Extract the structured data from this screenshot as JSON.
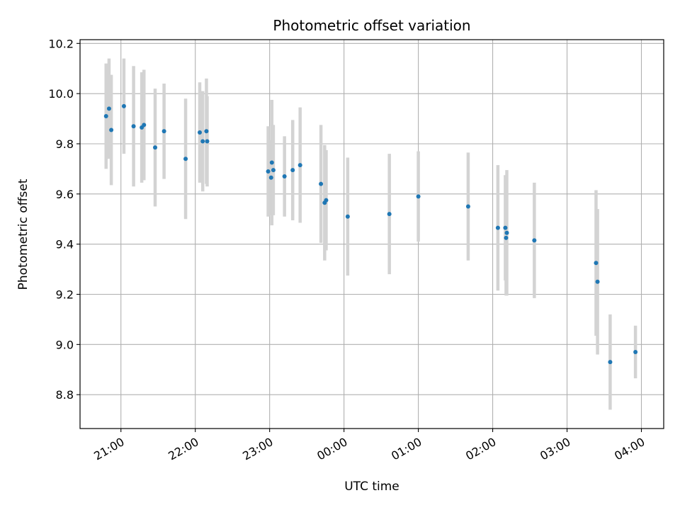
{
  "chart_data": {
    "type": "scatter",
    "title": "Photometric offset variation",
    "xlabel": "UTC time",
    "ylabel": "Photometric offset",
    "x_unit": "hours (UTC, relative to midnight)",
    "xlim": [
      -3.55,
      4.3
    ],
    "ylim": [
      8.665,
      10.215
    ],
    "grid": true,
    "x_ticks": [
      {
        "value": -3,
        "label": "21:00"
      },
      {
        "value": -2,
        "label": "22:00"
      },
      {
        "value": -1,
        "label": "23:00"
      },
      {
        "value": 0,
        "label": "00:00"
      },
      {
        "value": 1,
        "label": "01:00"
      },
      {
        "value": 2,
        "label": "02:00"
      },
      {
        "value": 3,
        "label": "03:00"
      },
      {
        "value": 4,
        "label": "04:00"
      }
    ],
    "y_ticks": [
      {
        "value": 8.8,
        "label": "8.8"
      },
      {
        "value": 9.0,
        "label": "9.0"
      },
      {
        "value": 9.2,
        "label": "9.2"
      },
      {
        "value": 9.4,
        "label": "9.4"
      },
      {
        "value": 9.6,
        "label": "9.6"
      },
      {
        "value": 9.8,
        "label": "9.8"
      },
      {
        "value": 10.0,
        "label": "10.0"
      },
      {
        "value": 10.2,
        "label": "10.2"
      }
    ],
    "marker_color": "#1f77b4",
    "errorbar_color": "#d3d3d3",
    "points": [
      {
        "x": -3.2,
        "y": 9.91,
        "err": 0.21
      },
      {
        "x": -3.16,
        "y": 9.94,
        "err": 0.2
      },
      {
        "x": -3.13,
        "y": 9.855,
        "err": 0.22
      },
      {
        "x": -2.96,
        "y": 9.95,
        "err": 0.19
      },
      {
        "x": -2.83,
        "y": 9.87,
        "err": 0.24
      },
      {
        "x": -2.72,
        "y": 9.865,
        "err": 0.22
      },
      {
        "x": -2.69,
        "y": 9.875,
        "err": 0.22
      },
      {
        "x": -2.54,
        "y": 9.785,
        "err": 0.235
      },
      {
        "x": -2.42,
        "y": 9.85,
        "err": 0.19
      },
      {
        "x": -2.13,
        "y": 9.74,
        "err": 0.24
      },
      {
        "x": -1.94,
        "y": 9.845,
        "err": 0.2
      },
      {
        "x": -1.9,
        "y": 9.81,
        "err": 0.2
      },
      {
        "x": -1.85,
        "y": 9.85,
        "err": 0.21
      },
      {
        "x": -1.84,
        "y": 9.81,
        "err": 0.18
      },
      {
        "x": -1.02,
        "y": 9.69,
        "err": 0.18
      },
      {
        "x": -0.98,
        "y": 9.665,
        "err": 0.15
      },
      {
        "x": -0.97,
        "y": 9.725,
        "err": 0.25
      },
      {
        "x": -0.95,
        "y": 9.695,
        "err": 0.18
      },
      {
        "x": -0.8,
        "y": 9.67,
        "err": 0.16
      },
      {
        "x": -0.69,
        "y": 9.695,
        "err": 0.2
      },
      {
        "x": -0.59,
        "y": 9.715,
        "err": 0.23
      },
      {
        "x": -0.31,
        "y": 9.64,
        "err": 0.235
      },
      {
        "x": -0.26,
        "y": 9.565,
        "err": 0.23
      },
      {
        "x": -0.24,
        "y": 9.575,
        "err": 0.2
      },
      {
        "x": 0.05,
        "y": 9.51,
        "err": 0.235
      },
      {
        "x": 0.61,
        "y": 9.52,
        "err": 0.24
      },
      {
        "x": 1.0,
        "y": 9.59,
        "err": 0.18
      },
      {
        "x": 1.67,
        "y": 9.55,
        "err": 0.215
      },
      {
        "x": 2.07,
        "y": 9.465,
        "err": 0.25
      },
      {
        "x": 2.17,
        "y": 9.465,
        "err": 0.21
      },
      {
        "x": 2.18,
        "y": 9.425,
        "err": 0.23
      },
      {
        "x": 2.19,
        "y": 9.445,
        "err": 0.25
      },
      {
        "x": 2.56,
        "y": 9.415,
        "err": 0.23
      },
      {
        "x": 3.39,
        "y": 9.325,
        "err": 0.29
      },
      {
        "x": 3.41,
        "y": 9.25,
        "err": 0.29
      },
      {
        "x": 3.58,
        "y": 8.93,
        "err": 0.19
      },
      {
        "x": 3.92,
        "y": 8.97,
        "err": 0.105
      }
    ]
  }
}
